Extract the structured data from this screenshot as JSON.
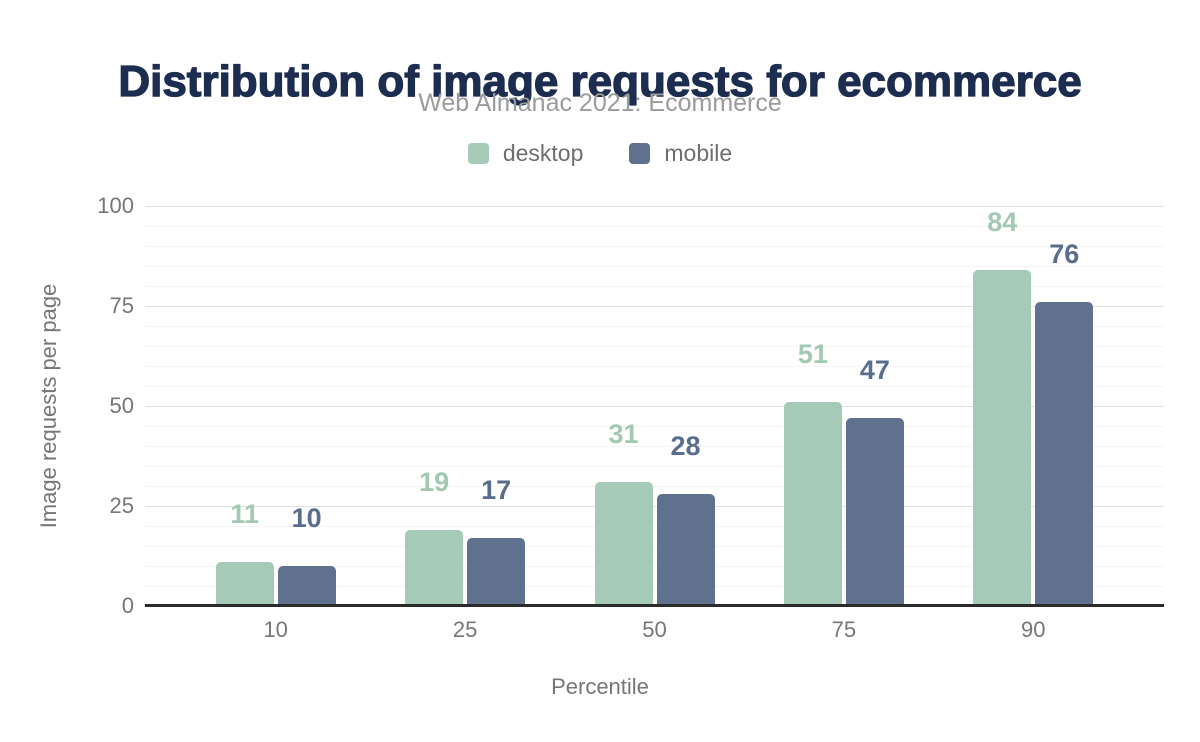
{
  "chart_data": {
    "type": "bar",
    "title": "Distribution of image requests for ecommerce",
    "subtitle": "Web Almanac 2021: Ecommerce",
    "xlabel": "Percentile",
    "ylabel": "Image requests per page",
    "categories": [
      "10",
      "25",
      "50",
      "75",
      "90"
    ],
    "series": [
      {
        "name": "desktop",
        "color": "#a6cab8",
        "label_color": "#a3c8b4",
        "values": [
          11,
          19,
          31,
          51,
          84
        ]
      },
      {
        "name": "mobile",
        "color": "#5f718d",
        "label_color": "#596d8c",
        "values": [
          10,
          17,
          28,
          47,
          76
        ]
      }
    ],
    "ylim": [
      0,
      100
    ],
    "y_ticks": [
      0,
      25,
      50,
      75,
      100
    ],
    "y_major_step": 25,
    "y_minor_step": 5,
    "grid": true,
    "legend_position": "top",
    "value_labels": true
  },
  "theme": {
    "background": "#ffffff",
    "title_color": "#1c2d50",
    "subtitle_color": "#9b9b9b",
    "legend_text_color": "#6e6e6e",
    "axis_text_color": "#767676",
    "gridline_major_color": "#e0e0e0",
    "gridline_minor_color": "#f4f4f4",
    "axis_line_color": "#2b2b2b"
  }
}
